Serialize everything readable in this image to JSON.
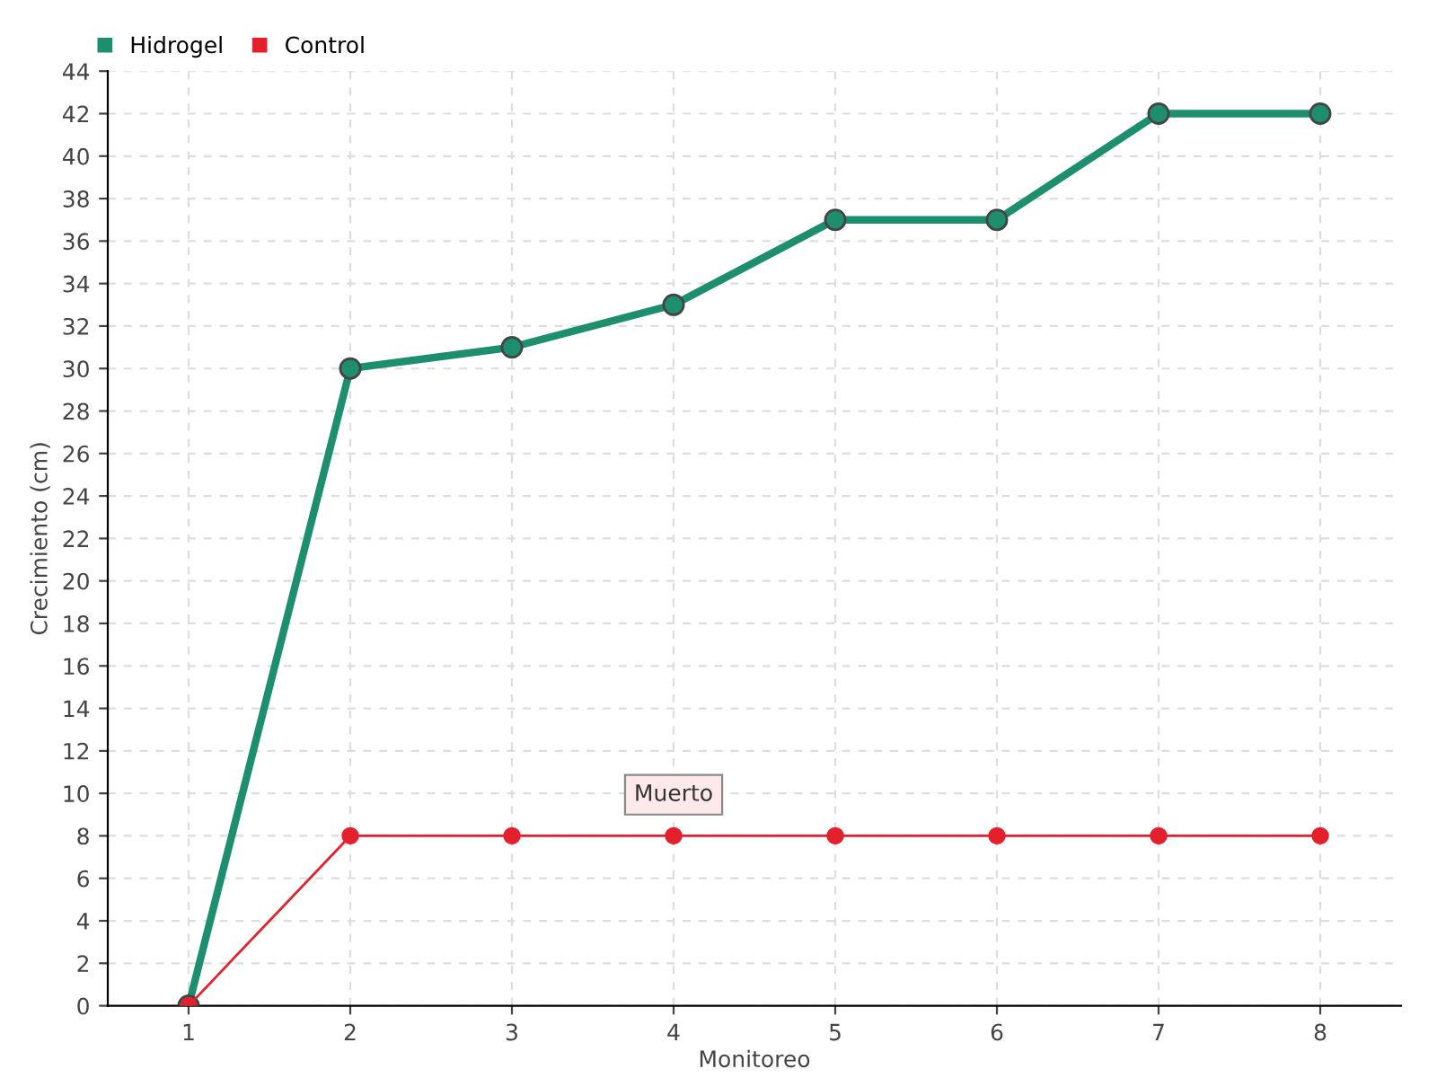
{
  "chart_data": {
    "type": "line",
    "xlabel": "Monitoreo",
    "ylabel": "Crecimiento (cm)",
    "categories": [
      "1",
      "2",
      "3",
      "4",
      "5",
      "6",
      "7",
      "8"
    ],
    "series": [
      {
        "name": "Hidrogel",
        "color": "#1e8f6e",
        "values": [
          0,
          30,
          31,
          33,
          37,
          37,
          42,
          42
        ]
      },
      {
        "name": "Control",
        "color": "#e3202c",
        "values": [
          0,
          8,
          8,
          8,
          8,
          8,
          8,
          8
        ]
      }
    ],
    "ylim": [
      0,
      44
    ],
    "yticks": [
      0,
      2,
      4,
      6,
      8,
      10,
      12,
      14,
      16,
      18,
      20,
      22,
      24,
      26,
      28,
      30,
      32,
      34,
      36,
      38,
      40,
      42,
      44
    ],
    "grid": true,
    "legend": "top left",
    "marker": "circle",
    "line_style": "solid",
    "annotations": [
      {
        "text": "Muerto",
        "x": "4",
        "y": 8
      }
    ]
  }
}
